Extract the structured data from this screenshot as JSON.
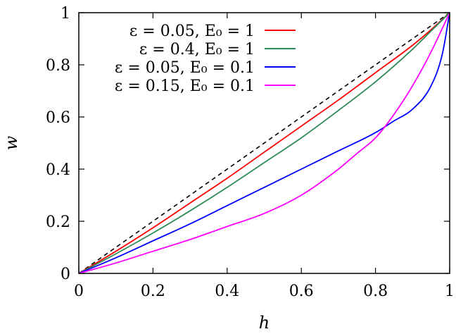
{
  "chart_data": {
    "type": "line",
    "xlabel": "h",
    "ylabel": "w",
    "xlim": [
      0,
      1
    ],
    "ylim": [
      0,
      1
    ],
    "xticks": [
      "0",
      "0.2",
      "0.4",
      "0.6",
      "0.8",
      "1"
    ],
    "yticks": [
      "0",
      "0.2",
      "0.4",
      "0.6",
      "0.8",
      "1"
    ],
    "grid": false,
    "legend": {
      "position": "top-left"
    },
    "reference_line": {
      "style": "dashed",
      "color": "#000000",
      "x": [
        0,
        1
      ],
      "y": [
        0,
        1
      ]
    },
    "series": [
      {
        "name": "ε = 0.05, E₀ = 1",
        "color": "#ff0000",
        "x": [
          0,
          0.1,
          0.2,
          0.3,
          0.4,
          0.5,
          0.6,
          0.7,
          0.8,
          0.9,
          0.95,
          1
        ],
        "y": [
          0,
          0.085,
          0.175,
          0.27,
          0.365,
          0.465,
          0.565,
          0.665,
          0.77,
          0.875,
          0.935,
          1
        ]
      },
      {
        "name": "ε = 0.4, E₀ = 1",
        "color": "#2e8b57",
        "x": [
          0,
          0.1,
          0.2,
          0.3,
          0.4,
          0.5,
          0.6,
          0.7,
          0.8,
          0.9,
          0.95,
          1
        ],
        "y": [
          0,
          0.075,
          0.155,
          0.24,
          0.33,
          0.425,
          0.52,
          0.625,
          0.735,
          0.86,
          0.93,
          1
        ]
      },
      {
        "name": "ε = 0.05, E₀ = 0.1",
        "color": "#0000ff",
        "x": [
          0,
          0.1,
          0.2,
          0.3,
          0.4,
          0.5,
          0.6,
          0.7,
          0.8,
          0.85,
          0.9,
          0.95,
          0.98,
          1
        ],
        "y": [
          0,
          0.06,
          0.125,
          0.19,
          0.26,
          0.33,
          0.4,
          0.47,
          0.54,
          0.585,
          0.63,
          0.72,
          0.84,
          1
        ]
      },
      {
        "name": "ε = 0.15, E₀ = 0.1",
        "color": "#ff00ff",
        "x": [
          0,
          0.1,
          0.2,
          0.3,
          0.4,
          0.5,
          0.6,
          0.7,
          0.75,
          0.8,
          0.85,
          0.9,
          0.95,
          1
        ],
        "y": [
          0,
          0.04,
          0.085,
          0.13,
          0.18,
          0.23,
          0.3,
          0.4,
          0.46,
          0.52,
          0.61,
          0.72,
          0.85,
          1
        ]
      }
    ]
  }
}
